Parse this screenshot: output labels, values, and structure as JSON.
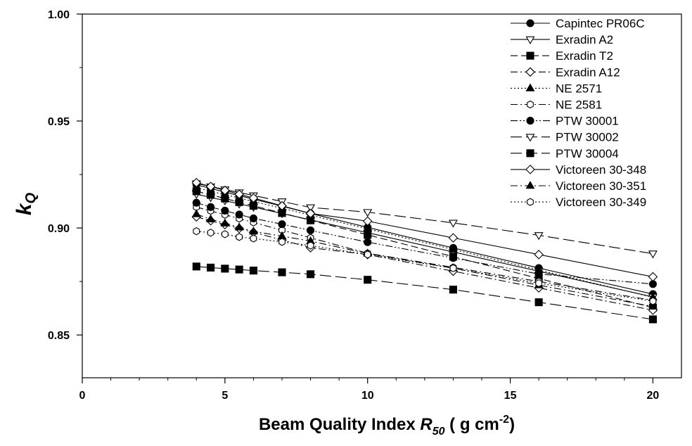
{
  "chart_data": {
    "type": "line",
    "title": "",
    "xlabel": {
      "prefix": "Beam Quality Index ",
      "var": "R",
      "sub": "50",
      "unit_open": " ( g cm",
      "sup": "-2",
      "unit_close": ")"
    },
    "ylabel": {
      "var": "k",
      "sub": "Q"
    },
    "xlim": [
      0,
      21
    ],
    "ylim": [
      0.83,
      1.0
    ],
    "x_ticks": [
      0,
      5,
      10,
      15,
      20
    ],
    "x_tick_labels": [
      "0",
      "5",
      "10",
      "15",
      "20"
    ],
    "x_minor_step": 1,
    "y_ticks": [
      0.85,
      0.9,
      0.95,
      1.0
    ],
    "y_tick_labels": [
      "0.85",
      "0.90",
      "0.95",
      "1.00"
    ],
    "y_minor_ticks": [
      0.875,
      0.925,
      0.975
    ],
    "grid": false,
    "legend_position": "top-right",
    "x": [
      4,
      4.5,
      5,
      5.5,
      6,
      7,
      8,
      10,
      13,
      16,
      20
    ],
    "series": [
      {
        "name": "Capintec PR06C",
        "marker": "circle",
        "fill": "filled",
        "dash": "solid",
        "values": [
          0.9202,
          0.9185,
          0.9168,
          0.9151,
          0.9135,
          0.9102,
          0.9068,
          0.9003,
          0.8907,
          0.8813,
          0.8691
        ]
      },
      {
        "name": "Exradin A2",
        "marker": "triangle-down",
        "fill": "open",
        "dash": "solid",
        "values": [
          0.9158,
          0.9143,
          0.9128,
          0.9113,
          0.9098,
          0.9068,
          0.9038,
          0.8978,
          0.8888,
          0.8798,
          0.8678
        ]
      },
      {
        "name": "Exradin T2",
        "marker": "square",
        "fill": "filled",
        "dash": "dash",
        "values": [
          0.9172,
          0.9155,
          0.9138,
          0.9121,
          0.9104,
          0.907,
          0.9036,
          0.8968,
          0.8866,
          0.8764,
          0.8628
        ]
      },
      {
        "name": "Exradin A12",
        "marker": "diamond",
        "fill": "open",
        "dash": "dashdot",
        "values": [
          0.9052,
          0.9034,
          0.9016,
          0.8998,
          0.898,
          0.8944,
          0.8908,
          0.8876,
          0.8798,
          0.872,
          0.8616
        ]
      },
      {
        "name": "NE 2571",
        "marker": "triangle-up",
        "fill": "filled",
        "dash": "dot",
        "values": [
          0.9188,
          0.9172,
          0.9156,
          0.914,
          0.9124,
          0.9092,
          0.906,
          0.8996,
          0.89,
          0.8804,
          0.8676
        ]
      },
      {
        "name": "NE 2581",
        "marker": "hexagon",
        "fill": "open",
        "dash": "dashdot",
        "values": [
          0.9098,
          0.908,
          0.9062,
          0.9044,
          0.9026,
          0.899,
          0.8954,
          0.8882,
          0.8816,
          0.875,
          0.8662
        ]
      },
      {
        "name": "PTW 30001",
        "marker": "circle",
        "fill": "filled",
        "dash": "dashdotdot",
        "values": [
          0.9118,
          0.9098,
          0.9081,
          0.9063,
          0.9045,
          0.9018,
          0.8989,
          0.8934,
          0.886,
          0.8785,
          0.8738
        ]
      },
      {
        "name": "PTW 30002",
        "marker": "triangle-down",
        "fill": "open",
        "dash": "longdash",
        "values": [
          0.9208,
          0.9194,
          0.918,
          0.9166,
          0.9152,
          0.9124,
          0.9096,
          0.9074,
          0.9024,
          0.8966,
          0.888
        ]
      },
      {
        "name": "PTW 30004",
        "marker": "square",
        "fill": "filled",
        "dash": "longdash",
        "values": [
          0.882,
          0.8815,
          0.881,
          0.8806,
          0.8801,
          0.8793,
          0.8784,
          0.8758,
          0.8712,
          0.8653,
          0.8573
        ]
      },
      {
        "name": "Victoreen 30-348",
        "marker": "diamond",
        "fill": "open",
        "dash": "solid",
        "values": [
          0.9212,
          0.9194,
          0.9176,
          0.9158,
          0.914,
          0.9104,
          0.9068,
          0.9032,
          0.8954,
          0.8876,
          0.8772
        ]
      },
      {
        "name": "Victoreen 30-351",
        "marker": "triangle-up",
        "fill": "filled",
        "dash": "dashdot",
        "values": [
          0.9065,
          0.9041,
          0.9022,
          0.9003,
          0.8984,
          0.8962,
          0.8939,
          0.8881,
          0.8812,
          0.8733,
          0.8633
        ]
      },
      {
        "name": "Victoreen 30-349",
        "marker": "hexagon",
        "fill": "open",
        "dash": "dot",
        "values": [
          0.8985,
          0.8978,
          0.8971,
          0.8958,
          0.8951,
          0.8935,
          0.8918,
          0.8876,
          0.8812,
          0.8742,
          0.8658
        ]
      }
    ]
  }
}
